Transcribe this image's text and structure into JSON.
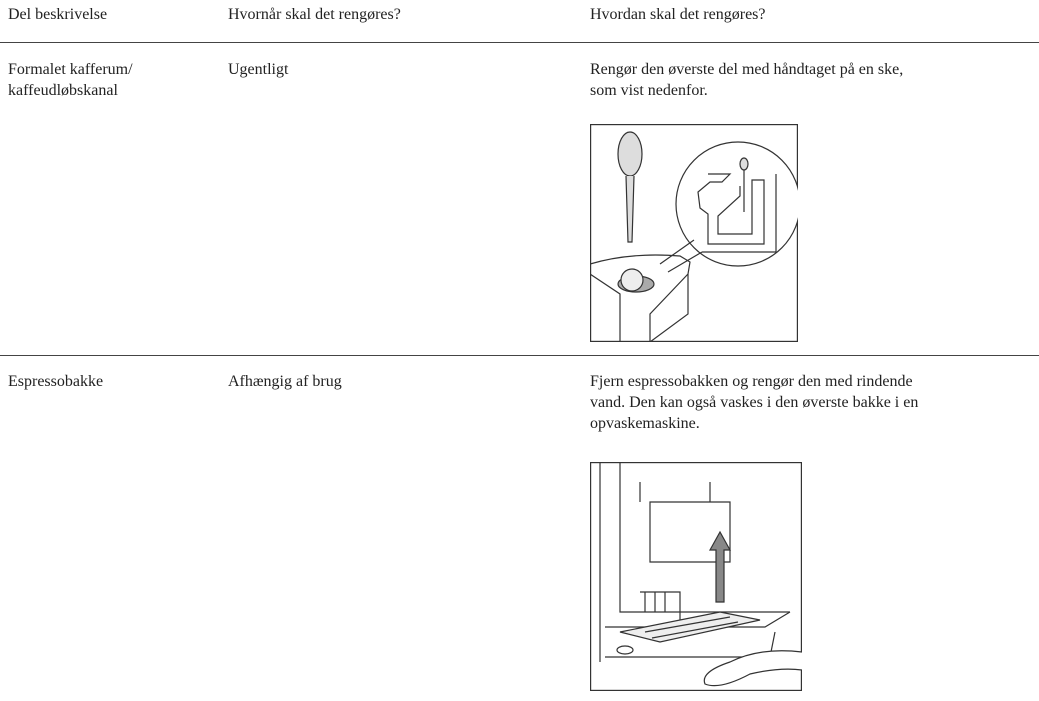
{
  "table": {
    "header": [
      "Del beskrivelse",
      "Hvornår skal det rengøres?",
      "Hvordan skal det rengøres?"
    ],
    "rows": [
      [
        [
          "Formalet kafferum/",
          "kaffeudløbskanal"
        ],
        [
          "Ugentligt"
        ],
        [
          "Rengør den øverste del med håndtaget på en ske,",
          "som vist nedenfor."
        ]
      ],
      [
        [
          "Espressobakke"
        ],
        [
          "Afhængig af brug"
        ],
        [
          "Fjern espressobakken og rengør den med rindende",
          "vand. Den kan også vaskes i den øverste bakke i en",
          "opvaskemaskine."
        ]
      ]
    ]
  }
}
